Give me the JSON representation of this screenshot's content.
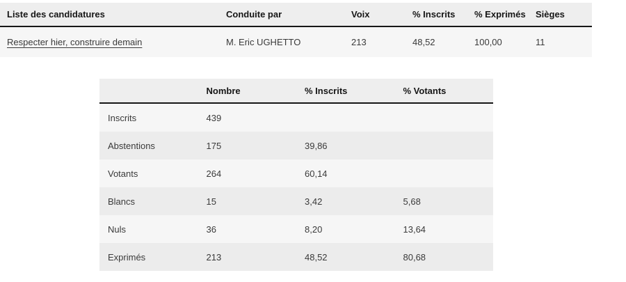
{
  "colors": {
    "page_background": "#ffffff",
    "table_header_background": "#eeeeee",
    "row_light": "#f6f6f6",
    "row_dark": "#ececec",
    "header_border": "#161616",
    "header_text": "#161616",
    "cell_text": "#3a3a3a"
  },
  "results_table": {
    "columns": [
      "Liste des candidatures",
      "Conduite par",
      "Voix",
      "% Inscrits",
      "% Exprimés",
      "Sièges"
    ],
    "rows": [
      {
        "liste": "Respecter hier, construire demain",
        "conduite_par": "M. Eric UGHETTO",
        "voix": "213",
        "pct_inscrits": "48,52",
        "pct_exprimes": "100,00",
        "sieges": "11"
      }
    ]
  },
  "participation_table": {
    "columns": [
      "",
      "Nombre",
      "% Inscrits",
      "% Votants"
    ],
    "rows": [
      {
        "label": "Inscrits",
        "nombre": "439",
        "pct_inscrits": "",
        "pct_votants": ""
      },
      {
        "label": "Abstentions",
        "nombre": "175",
        "pct_inscrits": "39,86",
        "pct_votants": ""
      },
      {
        "label": "Votants",
        "nombre": "264",
        "pct_inscrits": "60,14",
        "pct_votants": ""
      },
      {
        "label": "Blancs",
        "nombre": "15",
        "pct_inscrits": "3,42",
        "pct_votants": "5,68"
      },
      {
        "label": "Nuls",
        "nombre": "36",
        "pct_inscrits": "8,20",
        "pct_votants": "13,64"
      },
      {
        "label": "Exprimés",
        "nombre": "213",
        "pct_inscrits": "48,52",
        "pct_votants": "80,68"
      }
    ]
  }
}
